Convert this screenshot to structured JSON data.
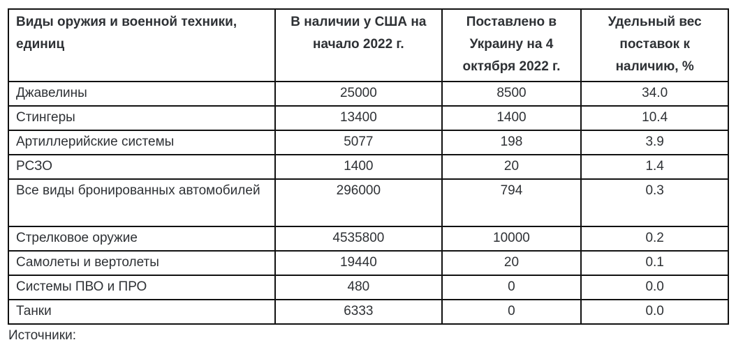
{
  "table": {
    "headers": [
      "Виды оружия и военной техники, единиц",
      "В наличии у США на начало 2022 г.",
      "Поставлено в Украину на 4 октября 2022 г.",
      "Удельный вес поставок к наличию, %"
    ],
    "rows": [
      [
        "Джавелины",
        "25000",
        "8500",
        "34.0"
      ],
      [
        "Стингеры",
        "13400",
        "1400",
        "10.4"
      ],
      [
        "Артиллерийские системы",
        "5077",
        "198",
        "3.9"
      ],
      [
        "РСЗО",
        "1400",
        "20",
        "1.4"
      ],
      [
        "Все виды бронированных автомобилей",
        "296000",
        "794",
        "0.3"
      ],
      [
        "Стрелковое оружие",
        "4535800",
        "10000",
        "0.2"
      ],
      [
        "Самолеты и вертолеты",
        "19440",
        "20",
        "0.1"
      ],
      [
        "Системы ПВО и ПРО",
        "480",
        "0",
        "0.0"
      ],
      [
        "Танки",
        "6333",
        "0",
        "0.0"
      ]
    ]
  },
  "footer": {
    "sources_label": "Источники:"
  }
}
